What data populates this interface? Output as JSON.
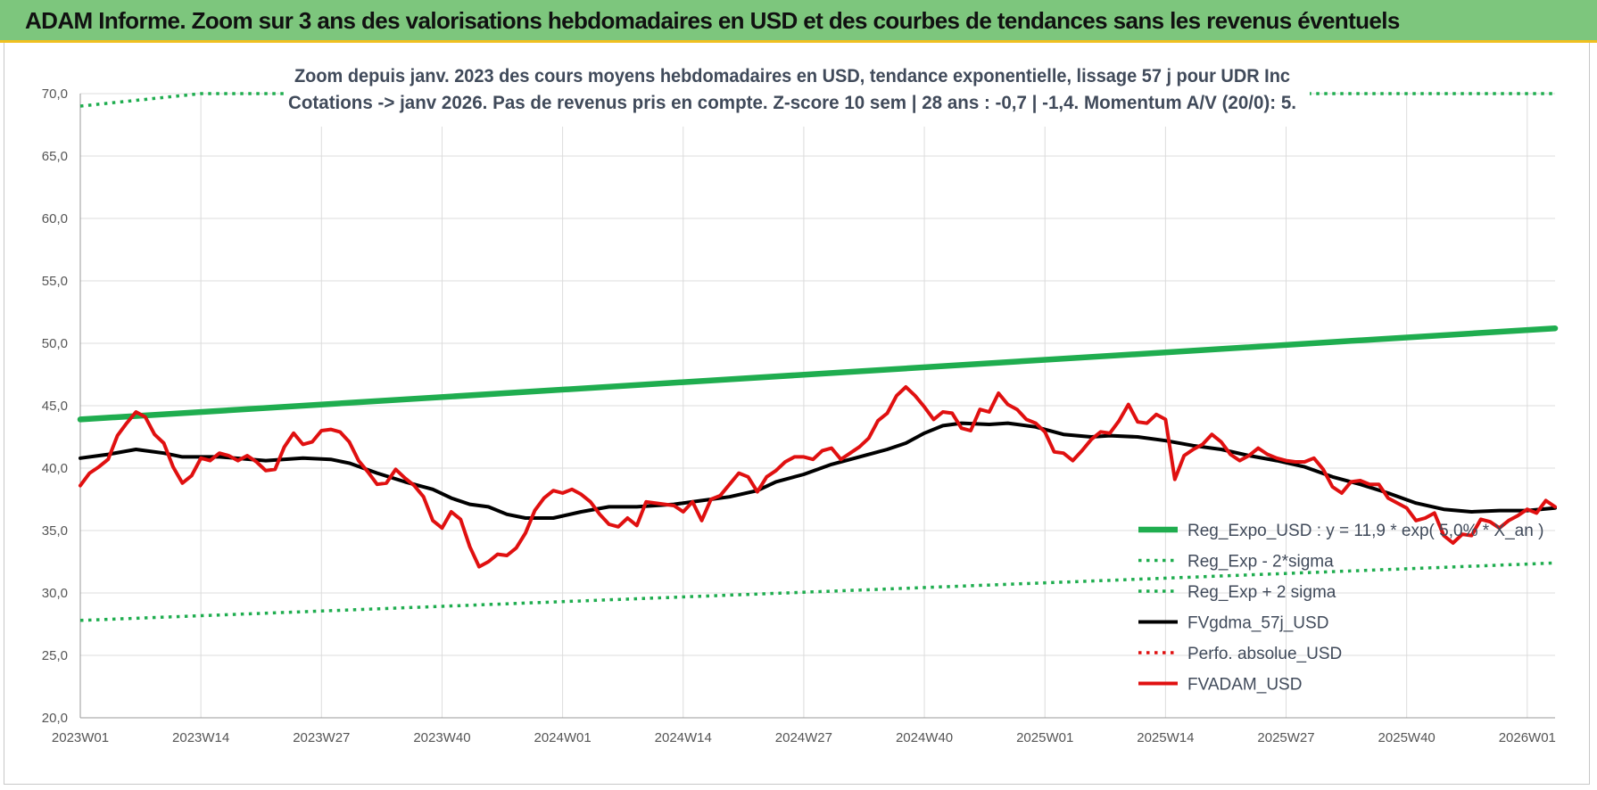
{
  "banner": {
    "title": "ADAM Informe. Zoom sur 3 ans des valorisations hebdomadaires en USD et des courbes de tendances sans les revenus éventuels"
  },
  "colors": {
    "banner_bg": "#7dc67d",
    "green": "#1fad4f",
    "black": "#000000",
    "red": "#e01010",
    "gridline": "#dcdcdc"
  },
  "chart_data": {
    "type": "line",
    "title_lines": [
      "Zoom depuis janv. 2023 des cours moyens hebdomadaires en USD, tendance exponentielle, lissage 57 j pour UDR Inc",
      "Cotations -> janv 2026. Pas de revenus pris en compte. Z-score 10 sem | 28 ans : -0,7 | -1,4. Momentum A/V (20/0): 5."
    ],
    "ylim": [
      20,
      70
    ],
    "y_ticks": [
      "20,0",
      "25,0",
      "30,0",
      "35,0",
      "40,0",
      "45,0",
      "50,0",
      "55,0",
      "60,0",
      "65,0",
      "70,0"
    ],
    "x_count": 160,
    "x_ticks": [
      {
        "index": 0,
        "label": "2023W01"
      },
      {
        "index": 13,
        "label": "2023W14"
      },
      {
        "index": 26,
        "label": "2023W27"
      },
      {
        "index": 39,
        "label": "2023W40"
      },
      {
        "index": 52,
        "label": "2024W01"
      },
      {
        "index": 65,
        "label": "2024W14"
      },
      {
        "index": 78,
        "label": "2024W27"
      },
      {
        "index": 91,
        "label": "2024W40"
      },
      {
        "index": 104,
        "label": "2025W01"
      },
      {
        "index": 117,
        "label": "2025W14"
      },
      {
        "index": 130,
        "label": "2025W27"
      },
      {
        "index": 143,
        "label": "2025W40"
      },
      {
        "index": 156,
        "label": "2026W01"
      }
    ],
    "legend_position": "bottom-right",
    "series": [
      {
        "name": "Reg_Expo_USD : y = 11,9 * exp( 5,0% * X_an )",
        "style": "solid-thick",
        "color": "#1fad4f",
        "points": [
          [
            0,
            43.9
          ],
          [
            159,
            51.2
          ]
        ]
      },
      {
        "name": "Reg_Exp - 2*sigma",
        "style": "dotted",
        "color": "#1fad4f",
        "points": [
          [
            0,
            27.8
          ],
          [
            159,
            32.4
          ]
        ]
      },
      {
        "name": "Reg_Exp + 2 sigma",
        "style": "dotted",
        "color": "#1fad4f",
        "points": [
          [
            0,
            69.0
          ],
          [
            13,
            70.0
          ],
          [
            159,
            70.0
          ]
        ]
      },
      {
        "name": "FVgdma_57j_USD",
        "style": "solid",
        "color": "#000000",
        "points": [
          [
            0,
            40.8
          ],
          [
            3,
            41.1
          ],
          [
            6,
            41.5
          ],
          [
            9,
            41.2
          ],
          [
            11,
            40.9
          ],
          [
            15,
            40.9
          ],
          [
            20,
            40.6
          ],
          [
            24,
            40.8
          ],
          [
            27,
            40.7
          ],
          [
            29,
            40.4
          ],
          [
            32,
            39.6
          ],
          [
            35,
            38.9
          ],
          [
            38,
            38.3
          ],
          [
            40,
            37.6
          ],
          [
            42,
            37.1
          ],
          [
            44,
            36.9
          ],
          [
            46,
            36.3
          ],
          [
            48,
            36.0
          ],
          [
            51,
            36.0
          ],
          [
            54,
            36.5
          ],
          [
            57,
            36.9
          ],
          [
            60,
            36.9
          ],
          [
            64,
            37.1
          ],
          [
            67,
            37.4
          ],
          [
            70,
            37.7
          ],
          [
            73,
            38.2
          ],
          [
            75,
            38.9
          ],
          [
            78,
            39.5
          ],
          [
            81,
            40.3
          ],
          [
            84,
            40.9
          ],
          [
            87,
            41.5
          ],
          [
            89,
            42.0
          ],
          [
            91,
            42.8
          ],
          [
            93,
            43.4
          ],
          [
            95,
            43.6
          ],
          [
            98,
            43.5
          ],
          [
            100,
            43.6
          ],
          [
            103,
            43.3
          ],
          [
            106,
            42.7
          ],
          [
            109,
            42.5
          ],
          [
            111,
            42.6
          ],
          [
            114,
            42.5
          ],
          [
            117,
            42.2
          ],
          [
            120,
            41.8
          ],
          [
            123,
            41.5
          ],
          [
            126,
            41.0
          ],
          [
            129,
            40.6
          ],
          [
            132,
            40.1
          ],
          [
            135,
            39.3
          ],
          [
            138,
            38.7
          ],
          [
            141,
            38.0
          ],
          [
            144,
            37.2
          ],
          [
            147,
            36.7
          ],
          [
            150,
            36.5
          ],
          [
            153,
            36.6
          ],
          [
            156,
            36.6
          ],
          [
            159,
            36.8
          ]
        ]
      },
      {
        "name": "Perfo. absolue_USD",
        "style": "dotted",
        "color": "#e01010",
        "points": []
      },
      {
        "name": "FVADAM_USD",
        "style": "solid",
        "color": "#e01010",
        "points": [
          [
            0,
            38.6
          ],
          [
            1,
            39.6
          ],
          [
            2,
            40.1
          ],
          [
            3,
            40.7
          ],
          [
            4,
            42.6
          ],
          [
            5,
            43.6
          ],
          [
            6,
            44.5
          ],
          [
            7,
            44.1
          ],
          [
            8,
            42.7
          ],
          [
            9,
            42.0
          ],
          [
            10,
            40.1
          ],
          [
            11,
            38.8
          ],
          [
            12,
            39.4
          ],
          [
            13,
            40.8
          ],
          [
            14,
            40.6
          ],
          [
            15,
            41.2
          ],
          [
            16,
            41.0
          ],
          [
            17,
            40.6
          ],
          [
            18,
            41.0
          ],
          [
            19,
            40.5
          ],
          [
            20,
            39.8
          ],
          [
            21,
            39.9
          ],
          [
            22,
            41.7
          ],
          [
            23,
            42.8
          ],
          [
            24,
            41.9
          ],
          [
            25,
            42.1
          ],
          [
            26,
            43.0
          ],
          [
            27,
            43.1
          ],
          [
            28,
            42.9
          ],
          [
            29,
            42.1
          ],
          [
            30,
            40.6
          ],
          [
            31,
            39.7
          ],
          [
            32,
            38.7
          ],
          [
            33,
            38.8
          ],
          [
            34,
            39.9
          ],
          [
            35,
            39.2
          ],
          [
            36,
            38.6
          ],
          [
            37,
            37.7
          ],
          [
            38,
            35.8
          ],
          [
            39,
            35.2
          ],
          [
            40,
            36.5
          ],
          [
            41,
            35.9
          ],
          [
            42,
            33.7
          ],
          [
            43,
            32.1
          ],
          [
            44,
            32.5
          ],
          [
            45,
            33.1
          ],
          [
            46,
            33.0
          ],
          [
            47,
            33.6
          ],
          [
            48,
            34.8
          ],
          [
            49,
            36.6
          ],
          [
            50,
            37.6
          ],
          [
            51,
            38.2
          ],
          [
            52,
            38.0
          ],
          [
            53,
            38.3
          ],
          [
            54,
            37.9
          ],
          [
            55,
            37.3
          ],
          [
            56,
            36.3
          ],
          [
            57,
            35.5
          ],
          [
            58,
            35.3
          ],
          [
            59,
            36.0
          ],
          [
            60,
            35.4
          ],
          [
            61,
            37.3
          ],
          [
            62,
            37.2
          ],
          [
            63,
            37.1
          ],
          [
            64,
            37.0
          ],
          [
            65,
            36.5
          ],
          [
            66,
            37.3
          ],
          [
            67,
            35.8
          ],
          [
            68,
            37.5
          ],
          [
            69,
            37.8
          ],
          [
            70,
            38.7
          ],
          [
            71,
            39.6
          ],
          [
            72,
            39.3
          ],
          [
            73,
            38.1
          ],
          [
            74,
            39.3
          ],
          [
            75,
            39.8
          ],
          [
            76,
            40.5
          ],
          [
            77,
            40.9
          ],
          [
            78,
            40.9
          ],
          [
            79,
            40.7
          ],
          [
            80,
            41.4
          ],
          [
            81,
            41.6
          ],
          [
            82,
            40.7
          ],
          [
            83,
            41.2
          ],
          [
            84,
            41.7
          ],
          [
            85,
            42.4
          ],
          [
            86,
            43.8
          ],
          [
            87,
            44.4
          ],
          [
            88,
            45.8
          ],
          [
            89,
            46.5
          ],
          [
            90,
            45.8
          ],
          [
            91,
            44.9
          ],
          [
            92,
            43.9
          ],
          [
            93,
            44.5
          ],
          [
            94,
            44.4
          ],
          [
            95,
            43.2
          ],
          [
            96,
            43.0
          ],
          [
            97,
            44.7
          ],
          [
            98,
            44.5
          ],
          [
            99,
            46.0
          ],
          [
            100,
            45.1
          ],
          [
            101,
            44.7
          ],
          [
            102,
            43.9
          ],
          [
            103,
            43.6
          ],
          [
            104,
            42.9
          ],
          [
            105,
            41.3
          ],
          [
            106,
            41.2
          ],
          [
            107,
            40.6
          ],
          [
            108,
            41.4
          ],
          [
            109,
            42.3
          ],
          [
            110,
            42.9
          ],
          [
            111,
            42.8
          ],
          [
            112,
            43.8
          ],
          [
            113,
            45.1
          ],
          [
            114,
            43.7
          ],
          [
            115,
            43.6
          ],
          [
            116,
            44.3
          ],
          [
            117,
            43.9
          ],
          [
            118,
            39.1
          ],
          [
            119,
            41.0
          ],
          [
            120,
            41.5
          ],
          [
            121,
            41.9
          ],
          [
            122,
            42.7
          ],
          [
            123,
            42.1
          ],
          [
            124,
            41.1
          ],
          [
            125,
            40.6
          ],
          [
            126,
            41.0
          ],
          [
            127,
            41.6
          ],
          [
            128,
            41.1
          ],
          [
            129,
            40.8
          ],
          [
            130,
            40.6
          ],
          [
            131,
            40.5
          ],
          [
            132,
            40.5
          ],
          [
            133,
            40.8
          ],
          [
            134,
            39.9
          ],
          [
            135,
            38.5
          ],
          [
            136,
            38.0
          ],
          [
            137,
            38.9
          ],
          [
            138,
            39.0
          ],
          [
            139,
            38.7
          ],
          [
            140,
            38.7
          ],
          [
            141,
            37.6
          ],
          [
            142,
            37.2
          ],
          [
            143,
            36.8
          ],
          [
            144,
            35.8
          ],
          [
            145,
            36.0
          ],
          [
            146,
            36.4
          ],
          [
            147,
            34.6
          ],
          [
            148,
            34.0
          ],
          [
            149,
            34.7
          ],
          [
            150,
            34.6
          ],
          [
            151,
            35.9
          ],
          [
            152,
            35.7
          ],
          [
            153,
            35.2
          ],
          [
            154,
            35.8
          ],
          [
            155,
            36.2
          ],
          [
            156,
            36.7
          ],
          [
            157,
            36.4
          ],
          [
            158,
            37.4
          ],
          [
            159,
            36.9
          ]
        ]
      }
    ]
  }
}
